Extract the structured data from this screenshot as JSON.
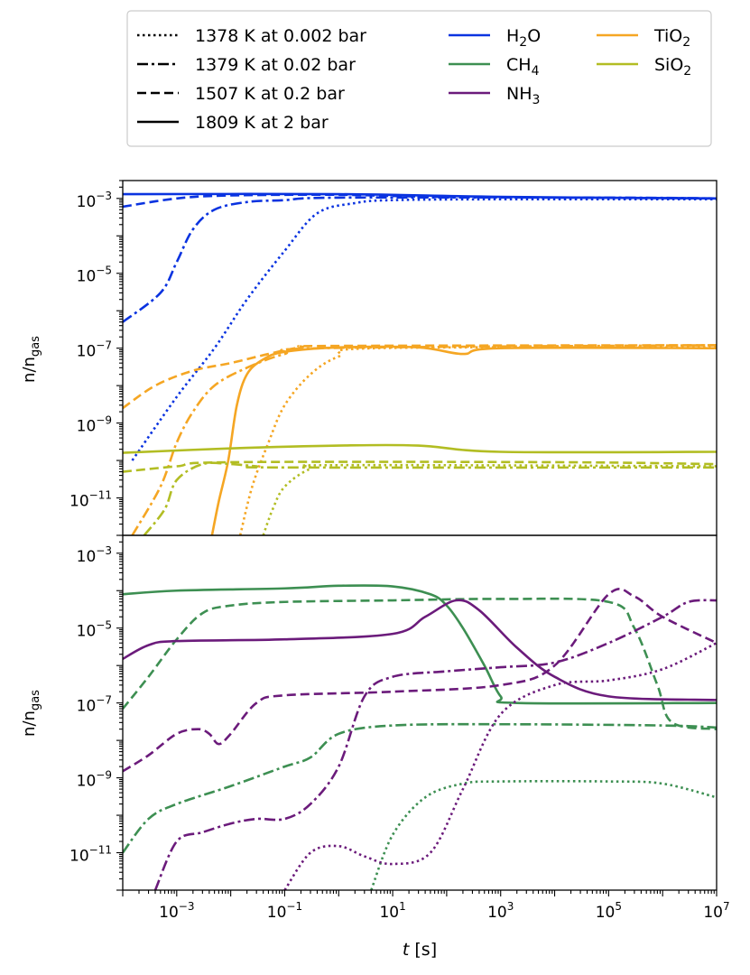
{
  "figure": {
    "legend": {
      "linestyles": [
        {
          "label": "1378 K at 0.002 bar",
          "dash": "dotted"
        },
        {
          "label": "1379 K at 0.02 bar",
          "dash": "dashdot"
        },
        {
          "label": "1507 K at 0.2 bar",
          "dash": "dashed"
        },
        {
          "label": "1809 K at 2 bar",
          "dash": "solid"
        }
      ],
      "species": [
        {
          "base": "H",
          "sub": "2",
          "tail": "O",
          "color": "#0a33e0"
        },
        {
          "base": "CH",
          "sub": "4",
          "tail": "",
          "color": "#3d8f52"
        },
        {
          "base": "NH",
          "sub": "3",
          "tail": "",
          "color": "#6b1b7b"
        },
        {
          "base": "TiO",
          "sub": "2",
          "tail": "",
          "color": "#f5a623"
        },
        {
          "base": "SiO",
          "sub": "2",
          "tail": "",
          "color": "#b2bd23"
        }
      ]
    },
    "xlabel_var": "t",
    "xlabel_unit": " [s]",
    "ylabel_base": "n/n",
    "ylabel_sub": "gas"
  },
  "chart_data": [
    {
      "type": "line",
      "panel": "top",
      "xscale": "log",
      "yscale": "log",
      "xlim": [
        0.0001,
        10000000
      ],
      "ylim": [
        1e-12,
        0.003
      ],
      "x_ticks": [
        "10^-3",
        "10^-1",
        "10^1",
        "10^3",
        "10^5",
        "10^7"
      ],
      "y_ticks": [
        "10^-11",
        "10^-9",
        "10^-7",
        "10^-5",
        "10^-3"
      ],
      "series": [
        {
          "name": "H2O",
          "condition": "1809 K at 2 bar",
          "points": [
            [
              0.0001,
              0.0013
            ],
            [
              1,
              0.0013
            ],
            [
              1000,
              0.0011
            ],
            [
              10000000,
              0.001
            ]
          ]
        },
        {
          "name": "H2O",
          "condition": "1507 K at 0.2 bar",
          "points": [
            [
              0.0001,
              0.0006
            ],
            [
              0.001,
              0.001
            ],
            [
              0.01,
              0.0012
            ],
            [
              1,
              0.00125
            ],
            [
              100,
              0.0011
            ],
            [
              10000000,
              0.001
            ]
          ]
        },
        {
          "name": "H2O",
          "condition": "1379 K at 0.02 bar",
          "points": [
            [
              0.0001,
              5e-07
            ],
            [
              0.0005,
              3e-06
            ],
            [
              0.001,
              2e-05
            ],
            [
              0.002,
              0.00015
            ],
            [
              0.005,
              0.0005
            ],
            [
              0.02,
              0.0008
            ],
            [
              0.1,
              0.0009
            ],
            [
              1,
              0.00105
            ],
            [
              100000,
              0.00105
            ],
            [
              10000000,
              0.001
            ]
          ]
        },
        {
          "name": "H2O",
          "condition": "1378 K at 0.002 bar",
          "points": [
            [
              0.00015,
              1e-10
            ],
            [
              0.001,
              5e-09
            ],
            [
              0.005,
              1e-07
            ],
            [
              0.02,
              2e-06
            ],
            [
              0.1,
              4e-05
            ],
            [
              0.4,
              0.0004
            ],
            [
              2,
              0.00075
            ],
            [
              10,
              0.0009
            ],
            [
              1000,
              0.00095
            ],
            [
              10000000,
              0.00095
            ]
          ]
        },
        {
          "name": "TiO2",
          "condition": "1809 K at 2 bar",
          "points": [
            [
              0.0045,
              1e-12
            ],
            [
              0.006,
              8e-12
            ],
            [
              0.009,
              1e-10
            ],
            [
              0.013,
              3e-09
            ],
            [
              0.02,
              2e-08
            ],
            [
              0.04,
              5e-08
            ],
            [
              0.1,
              8e-08
            ],
            [
              1,
              1.05e-07
            ],
            [
              30,
              1.05e-07
            ],
            [
              200,
              7e-08
            ],
            [
              1000,
              1e-07
            ],
            [
              10000000,
              1e-07
            ]
          ]
        },
        {
          "name": "TiO2",
          "condition": "1507 K at 0.2 bar",
          "points": [
            [
              0.0001,
              2.5e-09
            ],
            [
              0.0004,
              1e-08
            ],
            [
              0.002,
              2.5e-08
            ],
            [
              0.01,
              4e-08
            ],
            [
              0.05,
              7e-08
            ],
            [
              0.2,
              1.05e-07
            ],
            [
              1,
              1.15e-07
            ],
            [
              10000000,
              1.2e-07
            ]
          ]
        },
        {
          "name": "TiO2",
          "condition": "1379 K at 0.02 bar",
          "points": [
            [
              0.00015,
              1e-12
            ],
            [
              0.0005,
              2e-11
            ],
            [
              0.001,
              3e-10
            ],
            [
              0.002,
              2e-09
            ],
            [
              0.005,
              1e-08
            ],
            [
              0.02,
              3e-08
            ],
            [
              0.1,
              7e-08
            ],
            [
              0.5,
              1e-07
            ],
            [
              10000000,
              1.2e-07
            ]
          ]
        },
        {
          "name": "TiO2",
          "condition": "1378 K at 0.002 bar",
          "points": [
            [
              0.015,
              1e-12
            ],
            [
              0.025,
              2e-11
            ],
            [
              0.05,
              3e-10
            ],
            [
              0.1,
              3e-09
            ],
            [
              0.3,
              2e-08
            ],
            [
              1,
              6e-08
            ],
            [
              5,
              1e-07
            ],
            [
              10000000,
              1.05e-07
            ]
          ]
        },
        {
          "name": "SiO2",
          "condition": "1809 K at 2 bar",
          "points": [
            [
              0.0001,
              1.6e-10
            ],
            [
              0.01,
              2.1e-10
            ],
            [
              1,
              2.5e-10
            ],
            [
              30,
              2.5e-10
            ],
            [
              1000,
              1.7e-10
            ],
            [
              10000000,
              1.7e-10
            ]
          ]
        },
        {
          "name": "SiO2",
          "condition": "1507 K at 0.2 bar",
          "points": [
            [
              0.0001,
              5e-11
            ],
            [
              0.001,
              7e-11
            ],
            [
              0.01,
              9e-11
            ],
            [
              10000,
              9e-11
            ],
            [
              10000000,
              8e-11
            ]
          ]
        },
        {
          "name": "SiO2",
          "condition": "1379 K at 0.02 bar",
          "points": [
            [
              0.00025,
              1e-12
            ],
            [
              0.0006,
              5e-12
            ],
            [
              0.001,
              3e-11
            ],
            [
              0.003,
              8e-11
            ],
            [
              0.01,
              8e-11
            ],
            [
              0.03,
              7e-11
            ],
            [
              0.1,
              6.5e-11
            ],
            [
              10000000,
              6.5e-11
            ]
          ]
        },
        {
          "name": "SiO2",
          "condition": "1378 K at 0.002 bar",
          "points": [
            [
              0.04,
              1e-12
            ],
            [
              0.06,
              5e-12
            ],
            [
              0.1,
              2e-11
            ],
            [
              0.3,
              6e-11
            ],
            [
              1,
              7.5e-11
            ],
            [
              10000000,
              7e-11
            ]
          ]
        }
      ]
    },
    {
      "type": "line",
      "panel": "bottom",
      "xscale": "log",
      "yscale": "log",
      "xlim": [
        0.0001,
        10000000
      ],
      "ylim": [
        1e-12,
        0.003
      ],
      "x_ticks": [
        "10^-3",
        "10^-1",
        "10^1",
        "10^3",
        "10^5",
        "10^7"
      ],
      "y_ticks": [
        "10^-11",
        "10^-9",
        "10^-7",
        "10^-5",
        "10^-3"
      ],
      "series": [
        {
          "name": "CH4",
          "condition": "1809 K at 2 bar",
          "points": [
            [
              0.0001,
              8e-05
            ],
            [
              0.001,
              0.0001
            ],
            [
              0.1,
              0.000115
            ],
            [
              1,
              0.000135
            ],
            [
              10,
              0.00013
            ],
            [
              50,
              8e-05
            ],
            [
              100,
              4e-05
            ],
            [
              200,
              1e-05
            ],
            [
              500,
              1e-06
            ],
            [
              1000,
              1.5e-07
            ],
            [
              2000,
              1e-07
            ],
            [
              10000000,
              1e-07
            ]
          ]
        },
        {
          "name": "CH4",
          "condition": "1507 K at 0.2 bar",
          "points": [
            [
              0.0001,
              7e-08
            ],
            [
              0.0003,
              5e-07
            ],
            [
              0.001,
              5e-06
            ],
            [
              0.003,
              2.5e-05
            ],
            [
              0.01,
              4e-05
            ],
            [
              0.1,
              5e-05
            ],
            [
              10,
              5.5e-05
            ],
            [
              1000,
              6e-05
            ],
            [
              100000,
              5e-05
            ],
            [
              300000,
              1e-05
            ],
            [
              800000,
              3e-07
            ],
            [
              1500000,
              3e-08
            ],
            [
              10000000,
              2e-08
            ]
          ]
        },
        {
          "name": "CH4",
          "condition": "1379 K at 0.02 bar",
          "points": [
            [
              0.0001,
              1e-11
            ],
            [
              0.0003,
              8e-11
            ],
            [
              0.001,
              2e-10
            ],
            [
              0.01,
              6e-10
            ],
            [
              0.1,
              2e-09
            ],
            [
              0.3,
              3.5e-09
            ],
            [
              1,
              1.5e-08
            ],
            [
              10,
              2.5e-08
            ],
            [
              1000,
              2.7e-08
            ],
            [
              1000000,
              2.5e-08
            ],
            [
              10000000,
              2.2e-08
            ]
          ]
        },
        {
          "name": "CH4",
          "condition": "1378 K at 0.002 bar",
          "points": [
            [
              4,
              1e-12
            ],
            [
              10,
              3e-11
            ],
            [
              40,
              3e-10
            ],
            [
              200,
              7e-10
            ],
            [
              1000,
              8e-10
            ],
            [
              100000,
              8e-10
            ],
            [
              1000000,
              7e-10
            ],
            [
              10000000,
              3e-10
            ]
          ]
        },
        {
          "name": "NH3",
          "condition": "1809 K at 2 bar",
          "points": [
            [
              0.0001,
              1.5e-06
            ],
            [
              0.0003,
              3.5e-06
            ],
            [
              0.001,
              4.5e-06
            ],
            [
              0.1,
              5e-06
            ],
            [
              10,
              7e-06
            ],
            [
              40,
              2e-05
            ],
            [
              150,
              5.5e-05
            ],
            [
              400,
              3e-05
            ],
            [
              2000,
              3e-06
            ],
            [
              10000,
              5e-07
            ],
            [
              100000,
              1.5e-07
            ],
            [
              10000000,
              1.2e-07
            ]
          ]
        },
        {
          "name": "NH3",
          "condition": "1507 K at 0.2 bar",
          "points": [
            [
              0.0001,
              1.5e-09
            ],
            [
              0.0003,
              4e-09
            ],
            [
              0.001,
              1.5e-08
            ],
            [
              0.0025,
              2e-08
            ],
            [
              0.004,
              1.5e-08
            ],
            [
              0.006,
              8e-09
            ],
            [
              0.01,
              1.5e-08
            ],
            [
              0.03,
              1e-07
            ],
            [
              0.1,
              1.6e-07
            ],
            [
              10,
              2e-07
            ],
            [
              1000,
              3e-07
            ],
            [
              10000,
              1e-06
            ],
            [
              100000,
              8e-05
            ],
            [
              300000,
              7e-05
            ],
            [
              1000000,
              2e-05
            ],
            [
              10000000,
              4e-06
            ]
          ]
        },
        {
          "name": "NH3",
          "condition": "1379 K at 0.02 bar",
          "points": [
            [
              0.0004,
              1e-12
            ],
            [
              0.001,
              2e-11
            ],
            [
              0.003,
              3.5e-11
            ],
            [
              0.01,
              6e-11
            ],
            [
              0.03,
              8e-11
            ],
            [
              0.1,
              8e-11
            ],
            [
              0.3,
              2e-10
            ],
            [
              1,
              2e-09
            ],
            [
              3,
              1.5e-07
            ],
            [
              10,
              5e-07
            ],
            [
              100,
              7e-07
            ],
            [
              1000,
              9e-07
            ],
            [
              10000,
              1.2e-06
            ],
            [
              100000,
              4e-06
            ],
            [
              1000000,
              2e-05
            ],
            [
              3000000,
              5e-05
            ],
            [
              10000000,
              5.5e-05
            ]
          ]
        },
        {
          "name": "NH3",
          "condition": "1378 K at 0.002 bar",
          "points": [
            [
              0.1,
              1e-12
            ],
            [
              0.3,
              1e-11
            ],
            [
              1,
              1.5e-11
            ],
            [
              3,
              8e-12
            ],
            [
              10,
              5e-12
            ],
            [
              50,
              1e-11
            ],
            [
              200,
              5e-10
            ],
            [
              1000,
              5e-08
            ],
            [
              10000,
              3e-07
            ],
            [
              100000,
              4e-07
            ],
            [
              1000000,
              8e-07
            ],
            [
              10000000,
              4e-06
            ]
          ]
        }
      ]
    }
  ]
}
